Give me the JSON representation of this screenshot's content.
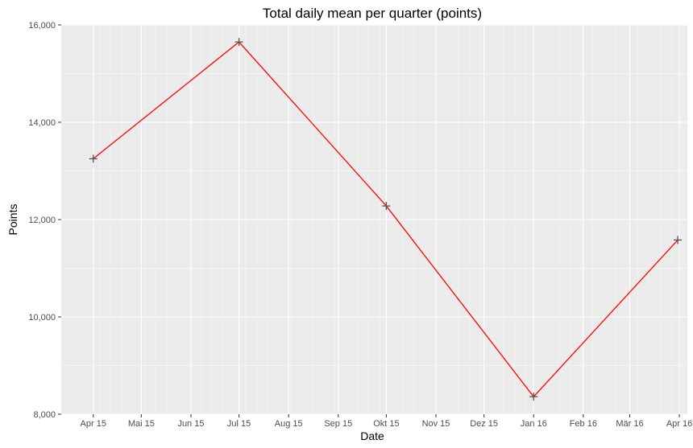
{
  "chart_data": {
    "type": "line",
    "title": "Total daily mean per quarter (points)",
    "xlabel": "Date",
    "ylabel": "Points",
    "x": [
      "2015-04-01",
      "2015-07-01",
      "2015-10-01",
      "2016-01-01",
      "2016-03-31"
    ],
    "series": [
      {
        "values": [
          13250,
          15650,
          12280,
          8360,
          11580
        ],
        "color": "#ff0000",
        "marker": "plus",
        "marker_color": "#555555"
      }
    ],
    "x_ticks": [
      {
        "date": "2015-04-01",
        "label": "Apr 15"
      },
      {
        "date": "2015-05-01",
        "label": "Mai 15"
      },
      {
        "date": "2015-06-01",
        "label": "Jun 15"
      },
      {
        "date": "2015-07-01",
        "label": "Jul 15"
      },
      {
        "date": "2015-08-01",
        "label": "Aug 15"
      },
      {
        "date": "2015-09-01",
        "label": "Sep 15"
      },
      {
        "date": "2015-10-01",
        "label": "Okt 15"
      },
      {
        "date": "2015-11-01",
        "label": "Nov 15"
      },
      {
        "date": "2015-12-01",
        "label": "Dez 15"
      },
      {
        "date": "2016-01-01",
        "label": "Jan 16"
      },
      {
        "date": "2016-02-01",
        "label": "Feb 16"
      },
      {
        "date": "2016-03-01",
        "label": "Mär 16"
      },
      {
        "date": "2016-04-01",
        "label": "Apr 16"
      }
    ],
    "y_ticks": [
      {
        "value": 8000,
        "label": "8,000"
      },
      {
        "value": 10000,
        "label": "10,000"
      },
      {
        "value": 12000,
        "label": "12,000"
      },
      {
        "value": 14000,
        "label": "14,000"
      },
      {
        "value": 16000,
        "label": "16,000"
      }
    ],
    "xlim": [
      "2015-03-12",
      "2016-04-06"
    ],
    "ylim": [
      8000,
      16000
    ],
    "grid": true,
    "panel_background": "#ebebeb",
    "grid_color": "#ffffff"
  }
}
